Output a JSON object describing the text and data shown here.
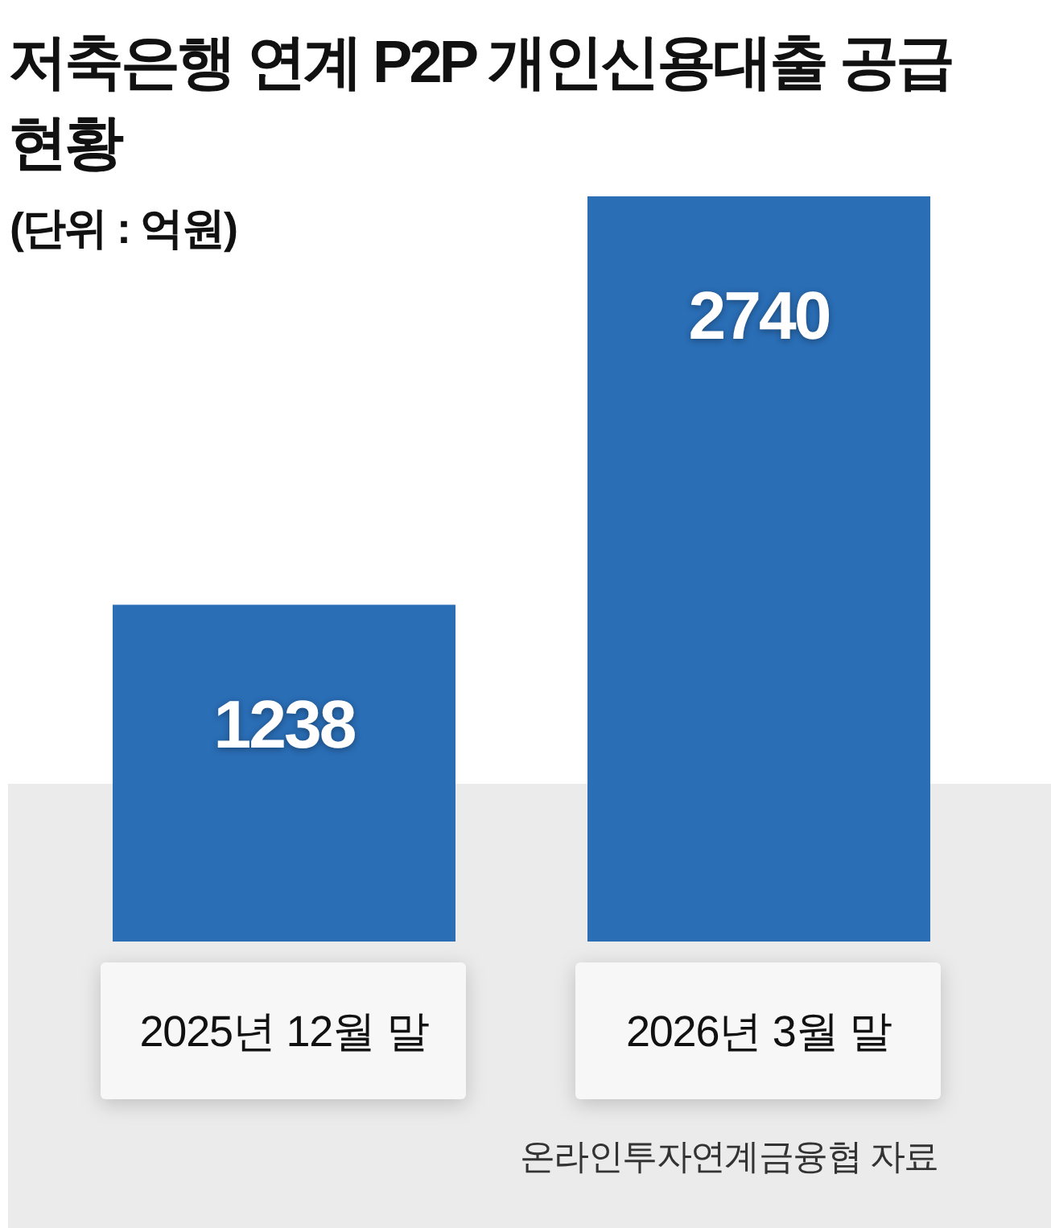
{
  "chart_data": {
    "type": "bar",
    "title": "저축은행 연계 P2P 개인신용대출 공급 현황",
    "subtitle": "(단위 : 억원)",
    "categories": [
      "2025년 12월 말",
      "2026년 3월 말"
    ],
    "values": [
      1238,
      2740
    ],
    "color": "#2a6eb6",
    "data_labels": true,
    "annotations": [
      "온라인투자연계금융협 자료"
    ]
  }
}
